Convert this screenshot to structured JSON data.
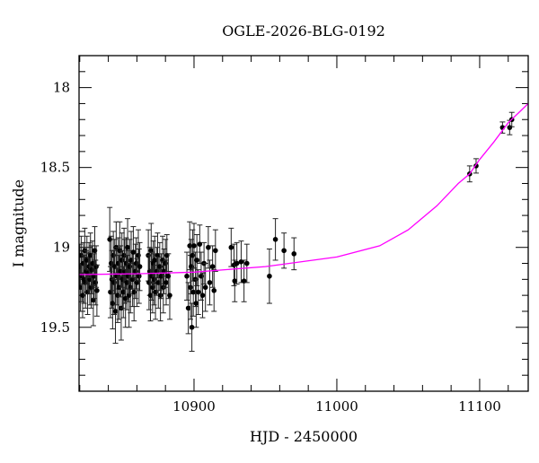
{
  "chart_data": {
    "type": "scatter",
    "title": "OGLE-2026-BLG-0192",
    "xlabel": "HJD - 2450000",
    "ylabel": "I magnitude",
    "xlim": [
      10819.5,
      11134
    ],
    "ylim": [
      17.8,
      19.9
    ],
    "y_inverted": true,
    "xticks": [
      10900,
      11000,
      11100
    ],
    "xtick_labels": [
      "10900",
      "11000",
      "11100"
    ],
    "x_minor_step": 20,
    "yticks": [
      18,
      18.5,
      19,
      19.5
    ],
    "ytick_labels": [
      "18",
      "18.5",
      "19",
      "19.5"
    ],
    "y_minor_step": 0.1,
    "grid": false,
    "colors": {
      "points": "#000000",
      "model": "#ff00ff"
    },
    "series": [
      {
        "name": "data",
        "point_format": "[hjd, mag, err]",
        "points": [
          [
            10820,
            19.12,
            0.14
          ],
          [
            10820.5,
            19.25,
            0.15
          ],
          [
            10821,
            19.05,
            0.12
          ],
          [
            10821.5,
            19.18,
            0.16
          ],
          [
            10822,
            19.3,
            0.14
          ],
          [
            10822.5,
            19.1,
            0.13
          ],
          [
            10823,
            19.2,
            0.15
          ],
          [
            10823.5,
            19.02,
            0.14
          ],
          [
            10824,
            19.22,
            0.16
          ],
          [
            10824.5,
            19.15,
            0.13
          ],
          [
            10825,
            19.08,
            0.15
          ],
          [
            10825.5,
            19.28,
            0.14
          ],
          [
            10826,
            19.16,
            0.13
          ],
          [
            10826.5,
            19.12,
            0.15
          ],
          [
            10827,
            19.2,
            0.16
          ],
          [
            10827.5,
            19.05,
            0.14
          ],
          [
            10828,
            19.25,
            0.13
          ],
          [
            10828.5,
            19.14,
            0.15
          ],
          [
            10829,
            19.1,
            0.14
          ],
          [
            10829.5,
            19.33,
            0.16
          ],
          [
            10830,
            19.18,
            0.14
          ],
          [
            10830.5,
            19.02,
            0.15
          ],
          [
            10831,
            19.22,
            0.14
          ],
          [
            10831.5,
            19.12,
            0.13
          ],
          [
            10832,
            19.27,
            0.16
          ],
          [
            10841,
            18.95,
            0.2
          ],
          [
            10841.5,
            19.28,
            0.16
          ],
          [
            10842,
            19.1,
            0.17
          ],
          [
            10842.5,
            19.2,
            0.18
          ],
          [
            10843,
            19.35,
            0.16
          ],
          [
            10843.5,
            19.05,
            0.15
          ],
          [
            10844,
            19.22,
            0.2
          ],
          [
            10844.5,
            19.12,
            0.17
          ],
          [
            10845,
            19.4,
            0.2
          ],
          [
            10845.5,
            19.0,
            0.16
          ],
          [
            10846,
            19.18,
            0.18
          ],
          [
            10846.5,
            19.3,
            0.17
          ],
          [
            10847,
            19.1,
            0.16
          ],
          [
            10847.5,
            19.25,
            0.2
          ],
          [
            10848,
            19.02,
            0.18
          ],
          [
            10848.5,
            19.15,
            0.16
          ],
          [
            10849,
            19.38,
            0.2
          ],
          [
            10849.5,
            19.08,
            0.17
          ],
          [
            10850,
            19.2,
            0.18
          ],
          [
            10850.5,
            19.28,
            0.16
          ],
          [
            10851,
            19.05,
            0.17
          ],
          [
            10851.5,
            19.15,
            0.2
          ],
          [
            10852,
            19.32,
            0.18
          ],
          [
            10852.5,
            19.1,
            0.16
          ],
          [
            10853,
            19.22,
            0.17
          ],
          [
            10853.5,
            19.0,
            0.18
          ],
          [
            10854,
            19.18,
            0.16
          ],
          [
            10854.5,
            19.3,
            0.2
          ],
          [
            10855,
            19.12,
            0.17
          ],
          [
            10855.5,
            19.25,
            0.16
          ],
          [
            10856,
            19.08,
            0.18
          ],
          [
            10857,
            19.2,
            0.17
          ],
          [
            10857.5,
            19.03,
            0.16
          ],
          [
            10858,
            19.28,
            0.18
          ],
          [
            10859,
            19.15,
            0.17
          ],
          [
            10859.5,
            19.1,
            0.16
          ],
          [
            10860,
            19.22,
            0.15
          ],
          [
            10861,
            19.05,
            0.16
          ],
          [
            10861.5,
            19.18,
            0.17
          ],
          [
            10862,
            19.12,
            0.15
          ],
          [
            10868,
            19.05,
            0.16
          ],
          [
            10868.5,
            19.22,
            0.17
          ],
          [
            10869,
            19.15,
            0.15
          ],
          [
            10869.5,
            19.3,
            0.16
          ],
          [
            10870,
            19.02,
            0.17
          ],
          [
            10870.5,
            19.18,
            0.15
          ],
          [
            10871,
            19.25,
            0.16
          ],
          [
            10871.5,
            19.1,
            0.14
          ],
          [
            10872,
            19.2,
            0.16
          ],
          [
            10872.5,
            19.08,
            0.15
          ],
          [
            10873,
            19.28,
            0.17
          ],
          [
            10874,
            19.15,
            0.15
          ],
          [
            10874.5,
            19.05,
            0.14
          ],
          [
            10875,
            19.22,
            0.16
          ],
          [
            10876,
            19.12,
            0.15
          ],
          [
            10876.5,
            19.3,
            0.16
          ],
          [
            10877,
            19.18,
            0.14
          ],
          [
            10878,
            19.08,
            0.15
          ],
          [
            10878.5,
            19.25,
            0.16
          ],
          [
            10879,
            19.15,
            0.14
          ],
          [
            10880,
            19.1,
            0.15
          ],
          [
            10880.5,
            19.22,
            0.14
          ],
          [
            10881,
            19.05,
            0.13
          ],
          [
            10882,
            19.18,
            0.14
          ],
          [
            10883,
            19.3,
            0.15
          ],
          [
            10895,
            19.18,
            0.15
          ],
          [
            10896,
            19.38,
            0.16
          ],
          [
            10897,
            18.99,
            0.15
          ],
          [
            10897.5,
            19.25,
            0.2
          ],
          [
            10898,
            19.12,
            0.17
          ],
          [
            10898.5,
            19.5,
            0.15
          ],
          [
            10899,
            19.05,
            0.16
          ],
          [
            10899.5,
            19.28,
            0.15
          ],
          [
            10900,
            18.99,
            0.14
          ],
          [
            10901,
            19.2,
            0.17
          ],
          [
            10901.5,
            19.35,
            0.15
          ],
          [
            10902,
            19.08,
            0.16
          ],
          [
            10903,
            19.28,
            0.14
          ],
          [
            10904,
            18.98,
            0.12
          ],
          [
            10905,
            19.18,
            0.15
          ],
          [
            10906,
            19.3,
            0.14
          ],
          [
            10907,
            19.1,
            0.13
          ],
          [
            10908,
            19.25,
            0.15
          ],
          [
            10910,
            19.0,
            0.13
          ],
          [
            10911,
            19.22,
            0.14
          ],
          [
            10913,
            19.12,
            0.13
          ],
          [
            10914,
            19.27,
            0.13
          ],
          [
            10915,
            19.02,
            0.13
          ],
          [
            10926,
            19.0,
            0.12
          ],
          [
            10928,
            19.11,
            0.13
          ],
          [
            10928.5,
            19.21,
            0.13
          ],
          [
            10930,
            19.1,
            0.13
          ],
          [
            10933,
            19.09,
            0.13
          ],
          [
            10935,
            19.21,
            0.13
          ],
          [
            10937,
            19.1,
            0.12
          ],
          [
            10952.8,
            19.18,
            0.17
          ],
          [
            10957,
            18.95,
            0.13
          ],
          [
            10963,
            19.02,
            0.11
          ],
          [
            10970,
            19.04,
            0.1
          ],
          [
            11093,
            18.54,
            0.05
          ],
          [
            11097.5,
            18.49,
            0.045
          ],
          [
            11116,
            18.25,
            0.035
          ],
          [
            11121,
            18.25,
            0.045
          ],
          [
            11122.5,
            18.2,
            0.045
          ]
        ]
      },
      {
        "name": "model",
        "type": "line",
        "points": [
          [
            10819.5,
            19.17
          ],
          [
            10860,
            19.165
          ],
          [
            10900,
            19.155
          ],
          [
            10950,
            19.12
          ],
          [
            11000,
            19.06
          ],
          [
            11030,
            18.99
          ],
          [
            11050,
            18.89
          ],
          [
            11070,
            18.74
          ],
          [
            11085,
            18.6
          ],
          [
            11093,
            18.54
          ],
          [
            11100,
            18.45
          ],
          [
            11110,
            18.34
          ],
          [
            11120,
            18.22
          ],
          [
            11127,
            18.16
          ],
          [
            11134,
            18.1
          ]
        ]
      }
    ]
  }
}
